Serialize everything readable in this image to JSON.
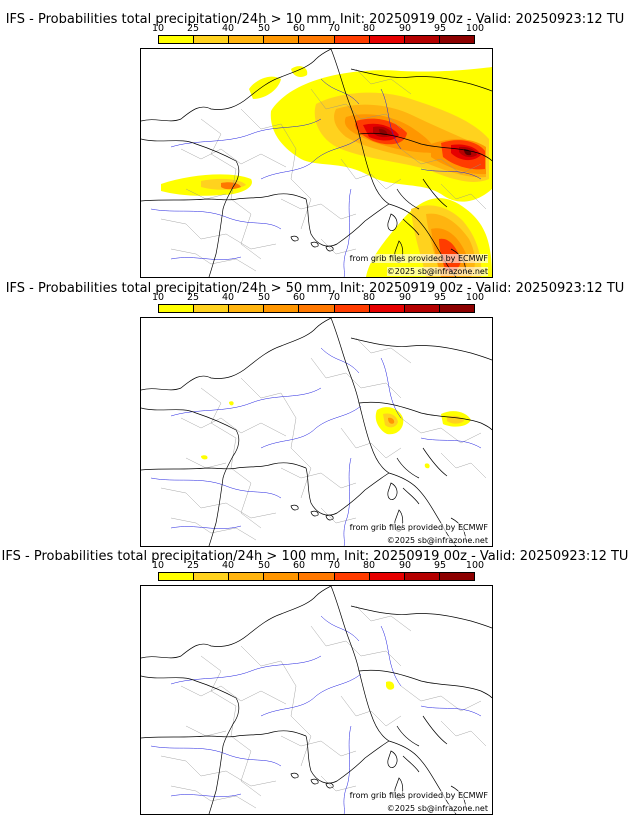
{
  "legend": {
    "ticks": [
      "10",
      "25",
      "40",
      "50",
      "60",
      "70",
      "80",
      "90",
      "95",
      "100"
    ],
    "colors": [
      "#ffff00",
      "#ffd21e",
      "#ffb40f",
      "#ff9600",
      "#ff7800",
      "#ff3c00",
      "#e60000",
      "#b40000",
      "#8c0000",
      "#5a0000"
    ]
  },
  "map_colors": {
    "borders": "#000000",
    "regions": "#909090",
    "rivers": "#1c1ce0"
  },
  "credits": {
    "source": "from grib files provided by ECMWF",
    "copyright": "©2025 sb@infrazone.net"
  },
  "panels": [
    {
      "title": "IFS - Probabilities total precipitation/24h > 10 mm, Init: 20250919 00z - Valid: 20250923:12 TU"
    },
    {
      "title": "IFS - Probabilities total precipitation/24h > 50 mm, Init: 20250919 00z - Valid: 20250923:12 TU"
    },
    {
      "title": "IFS - Probabilities total precipitation/24h > 100 mm, Init: 20250919 00z - Valid: 20250923:12 TU"
    }
  ]
}
